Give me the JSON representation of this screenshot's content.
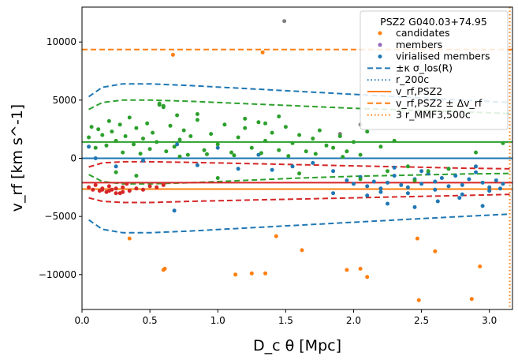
{
  "chart_data": {
    "type": "scatter",
    "xlabel": "D_c θ [Mpc]",
    "ylabel": "v_rf [km s^-1]",
    "xlim": [
      0.0,
      3.17
    ],
    "ylim": [
      -13000,
      13000
    ],
    "xticks": [
      "0.0",
      "0.5",
      "1.0",
      "1.5",
      "2.0",
      "2.5",
      "3.0"
    ],
    "yticks": [
      "10000",
      "5000",
      "0",
      "−5000",
      "−10000"
    ],
    "legend": {
      "position": "top-right",
      "title": "PSZ2 G040.03+74.95",
      "entries": [
        {
          "key": "candidates",
          "label": "candidates",
          "style": "marker",
          "color": "#ff7f0e"
        },
        {
          "key": "members",
          "label": "members",
          "style": "marker",
          "color": "#9467bd"
        },
        {
          "key": "virialised",
          "label": "virialised members",
          "style": "marker",
          "color": "#1f77b4"
        },
        {
          "key": "sigma",
          "label": "±κ σ_los(R)",
          "style": "dashed",
          "color": "#1f77b4"
        },
        {
          "key": "r200",
          "label": "r_200c",
          "style": "dotted",
          "color": "#1f77b4"
        },
        {
          "key": "vrf",
          "label": "v_rf,PSZ2",
          "style": "solid",
          "color": "#ff7f0e"
        },
        {
          "key": "vrfpm",
          "label": "v_rf,PSZ2 ± Δv_rf",
          "style": "dashed",
          "color": "#ff7f0e"
        },
        {
          "key": "r3",
          "label": "3 r_MMF3,500c",
          "style": "dotted",
          "color": "#ff7f0e"
        }
      ]
    },
    "hlines": [
      {
        "name": "v_rf,PSZ2 (orange)",
        "y": -2650,
        "color": "#ff7f0e",
        "style": "solid"
      },
      {
        "name": "v_rf,PSZ2 + Δv_rf (orange)",
        "y": 9350,
        "color": "#ff7f0e",
        "style": "dashed"
      },
      {
        "name": "blue system",
        "y": 0,
        "color": "#1f77b4",
        "style": "solid"
      },
      {
        "name": "green system",
        "y": 1400,
        "color": "#2ca02c",
        "style": "solid"
      },
      {
        "name": "red system",
        "y": -2100,
        "color": "#d62728",
        "style": "solid"
      }
    ],
    "vlines": [
      {
        "name": "3 r_MMF3,500c",
        "x": 3.15,
        "color": "#ff7f0e",
        "style": "dotted"
      }
    ],
    "curves": [
      {
        "name": "blue +κσ",
        "color": "#1f77b4",
        "x": [
          0.05,
          0.15,
          0.3,
          0.5,
          0.8,
          1.2,
          1.6,
          2.0,
          2.4,
          2.8,
          3.15
        ],
        "y": [
          5300,
          6100,
          6400,
          6400,
          6250,
          6000,
          5750,
          5500,
          5250,
          5000,
          4800
        ]
      },
      {
        "name": "blue −κσ",
        "color": "#1f77b4",
        "x": [
          0.05,
          0.15,
          0.3,
          0.5,
          0.8,
          1.2,
          1.6,
          2.0,
          2.4,
          2.8,
          3.15
        ],
        "y": [
          -5300,
          -6100,
          -6400,
          -6400,
          -6250,
          -6000,
          -5750,
          -5500,
          -5250,
          -5000,
          -4800
        ]
      },
      {
        "name": "green upper",
        "color": "#2ca02c",
        "x": [
          0.05,
          0.15,
          0.3,
          0.5,
          0.8,
          1.2,
          1.6,
          2.0,
          2.4,
          2.8,
          3.15
        ],
        "y": [
          4200,
          4800,
          5000,
          5000,
          4900,
          4700,
          4500,
          4300,
          4150,
          4000,
          3850
        ]
      },
      {
        "name": "green lower",
        "color": "#2ca02c",
        "x": [
          0.05,
          0.15,
          0.3,
          0.5,
          0.8,
          1.2,
          1.6,
          2.0,
          2.4,
          2.8,
          3.15
        ],
        "y": [
          -1400,
          -2000,
          -2200,
          -2200,
          -2100,
          -1900,
          -1700,
          -1550,
          -1450,
          -1350,
          -1300
        ]
      },
      {
        "name": "red upper",
        "color": "#d62728",
        "x": [
          0.05,
          0.15,
          0.3,
          0.5,
          0.8,
          1.2,
          1.6,
          2.0,
          2.4,
          2.8,
          3.15
        ],
        "y": [
          -750,
          -400,
          -300,
          -300,
          -350,
          -450,
          -550,
          -650,
          -750,
          -850,
          -900
        ]
      },
      {
        "name": "red lower",
        "color": "#d62728",
        "x": [
          0.05,
          0.15,
          0.3,
          0.5,
          0.8,
          1.2,
          1.6,
          2.0,
          2.4,
          2.8,
          3.15
        ],
        "y": [
          -3400,
          -3700,
          -3800,
          -3800,
          -3700,
          -3600,
          -3500,
          -3400,
          -3300,
          -3200,
          -3100
        ]
      }
    ],
    "series": [
      {
        "name": "candidates",
        "color": "#ff7f0e",
        "x": [
          0.67,
          0.35,
          0.6,
          0.61,
          1.13,
          1.25,
          1.35,
          1.43,
          1.62,
          1.95,
          2.05,
          2.1,
          2.47,
          2.48,
          2.6,
          2.87,
          2.93,
          1.33
        ],
        "y": [
          8900,
          -6900,
          -9600,
          -9500,
          -10000,
          -9900,
          -9900,
          -6700,
          -7900,
          -9600,
          -9500,
          -10200,
          -6900,
          -12200,
          -8000,
          -12100,
          -9300,
          9100
        ]
      },
      {
        "name": "grey outlier",
        "color": "#7f7f7f",
        "x": [
          1.49,
          1.9,
          2.05
        ],
        "y": [
          11800,
          2100,
          2900
        ]
      },
      {
        "name": "virialised members",
        "color": "#1f77b4",
        "x": [
          0.05,
          0.1,
          0.25,
          0.45,
          0.7,
          0.85,
          1.0,
          1.15,
          1.3,
          1.4,
          1.55,
          1.7,
          1.85,
          1.95,
          2.0,
          2.05,
          2.1,
          2.15,
          2.2,
          2.25,
          2.3,
          2.35,
          2.4,
          2.45,
          2.5,
          2.55,
          2.6,
          2.65,
          2.7,
          2.75,
          2.8,
          2.85,
          2.9,
          2.95,
          3.0,
          3.05,
          3.1,
          2.2,
          2.4,
          2.6,
          2.8,
          3.0,
          2.3,
          2.5,
          2.7,
          2.9,
          0.68,
          1.85,
          2.25,
          2.1,
          2.45,
          2.62,
          2.78,
          2.95,
          3.08
        ],
        "y": [
          1000,
          0,
          -700,
          -200,
          1200,
          -600,
          900,
          -900,
          300,
          -1000,
          -700,
          -400,
          -1100,
          -1900,
          -2200,
          -1600,
          -2400,
          -2000,
          -2600,
          -2100,
          -1500,
          -2300,
          -2500,
          -1800,
          -2200,
          -1300,
          -2000,
          -1700,
          -2400,
          -1500,
          -2300,
          -1800,
          -1200,
          -2100,
          -2500,
          -1900,
          -2200,
          -2900,
          -3000,
          -2700,
          -3100,
          -2800,
          -800,
          -1100,
          -900,
          -700,
          -4500,
          -3000,
          -3900,
          -3200,
          -4200,
          -3700,
          -3400,
          -4100,
          -2600
        ]
      },
      {
        "name": "green group",
        "color": "#2ca02c",
        "x": [
          0.05,
          0.07,
          0.1,
          0.12,
          0.15,
          0.18,
          0.2,
          0.22,
          0.25,
          0.28,
          0.3,
          0.32,
          0.35,
          0.38,
          0.4,
          0.43,
          0.45,
          0.48,
          0.5,
          0.52,
          0.55,
          0.57,
          0.6,
          0.62,
          0.65,
          0.68,
          0.7,
          0.72,
          0.75,
          0.78,
          0.8,
          0.85,
          0.9,
          0.95,
          1.0,
          1.05,
          1.1,
          1.15,
          1.2,
          1.25,
          1.3,
          1.35,
          1.4,
          1.45,
          1.5,
          1.55,
          1.6,
          1.65,
          1.7,
          1.75,
          1.8,
          1.85,
          1.9,
          1.95,
          2.0,
          2.05,
          2.1,
          2.2,
          2.3,
          2.4,
          2.55,
          2.7,
          2.9,
          3.1,
          0.57,
          0.6,
          0.85,
          1.2,
          1.45,
          1.35,
          0.25,
          0.4,
          1.0,
          1.6,
          2.05,
          2.25,
          2.45,
          0.72,
          0.92,
          1.12,
          1.32,
          1.52,
          1.72,
          1.92
        ],
        "y": [
          1800,
          2700,
          900,
          2500,
          2000,
          1100,
          3200,
          2300,
          1500,
          2900,
          500,
          1900,
          3500,
          1200,
          2600,
          400,
          1700,
          3000,
          800,
          2200,
          1400,
          4600,
          4500,
          600,
          2800,
          1000,
          3700,
          1600,
          2400,
          300,
          1900,
          3300,
          700,
          2100,
          1200,
          2900,
          500,
          1800,
          2600,
          900,
          3100,
          1500,
          2200,
          700,
          2700,
          1300,
          2000,
          600,
          1700,
          2400,
          1100,
          900,
          1900,
          600,
          1400,
          300,
          2300,
          1000,
          1500,
          -700,
          -1100,
          -900,
          500,
          1300,
          4700,
          4400,
          3800,
          3400,
          3600,
          3000,
          -1200,
          -1500,
          -1700,
          -1300,
          -1800,
          -1100,
          -1900,
          150,
          350,
          250,
          450,
          200,
          380,
          120
        ]
      },
      {
        "name": "red group",
        "color": "#d62728",
        "x": [
          0.05,
          0.08,
          0.1,
          0.13,
          0.15,
          0.18,
          0.2,
          0.22,
          0.25,
          0.28,
          0.3,
          0.33,
          0.35,
          0.4,
          0.45,
          0.5,
          0.55,
          0.6,
          0.25,
          0.3,
          0.2,
          0.15
        ],
        "y": [
          -2500,
          -2700,
          -2300,
          -2800,
          -2600,
          -2900,
          -2400,
          -2700,
          -2600,
          -3000,
          -2500,
          -2200,
          -2800,
          -2600,
          -2700,
          -2400,
          -2500,
          -2300,
          -3000,
          -2900,
          -2800,
          -2700
        ]
      }
    ]
  }
}
